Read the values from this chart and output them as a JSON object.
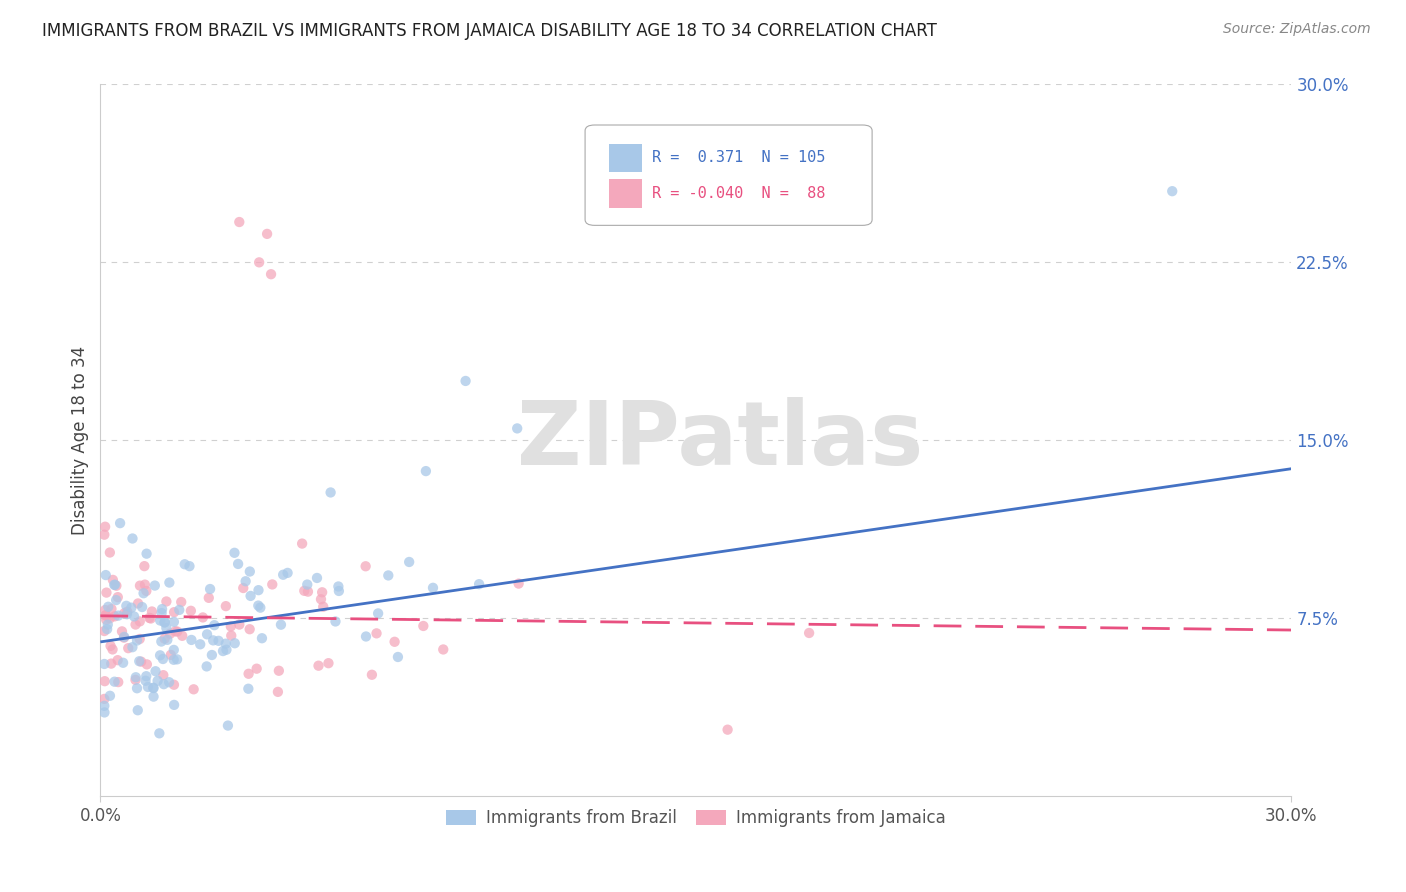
{
  "title": "IMMIGRANTS FROM BRAZIL VS IMMIGRANTS FROM JAMAICA DISABILITY AGE 18 TO 34 CORRELATION CHART",
  "source": "Source: ZipAtlas.com",
  "ylabel": "Disability Age 18 to 34",
  "legend_brazil": "Immigrants from Brazil",
  "legend_jamaica": "Immigrants from Jamaica",
  "brazil_R": "0.371",
  "brazil_N": "105",
  "jamaica_R": "-0.040",
  "jamaica_N": "88",
  "color_brazil": "#a8c8e8",
  "color_jamaica": "#f4a8bc",
  "color_brazil_line": "#4472c4",
  "color_jamaica_line": "#e85080",
  "color_ytick": "#4472c4",
  "xlim": [
    0.0,
    0.3
  ],
  "ylim": [
    0.0,
    0.3
  ],
  "y_ticks": [
    0.075,
    0.15,
    0.225,
    0.3
  ],
  "y_tick_labels": [
    "7.5%",
    "15.0%",
    "22.5%",
    "30.0%"
  ],
  "brazil_line_x0": 0.0,
  "brazil_line_y0": 0.065,
  "brazil_line_x1": 0.3,
  "brazil_line_y1": 0.138,
  "jamaica_line_x0": 0.0,
  "jamaica_line_y0": 0.076,
  "jamaica_line_x1": 0.3,
  "jamaica_line_y1": 0.07,
  "watermark_text": "ZIPatlas",
  "watermark_color": "#e0e0e0",
  "grid_color": "#d0d0d0",
  "spine_color": "#cccccc",
  "title_fontsize": 12,
  "source_fontsize": 10,
  "tick_fontsize": 12,
  "ylabel_fontsize": 12,
  "legend_fontsize": 11
}
